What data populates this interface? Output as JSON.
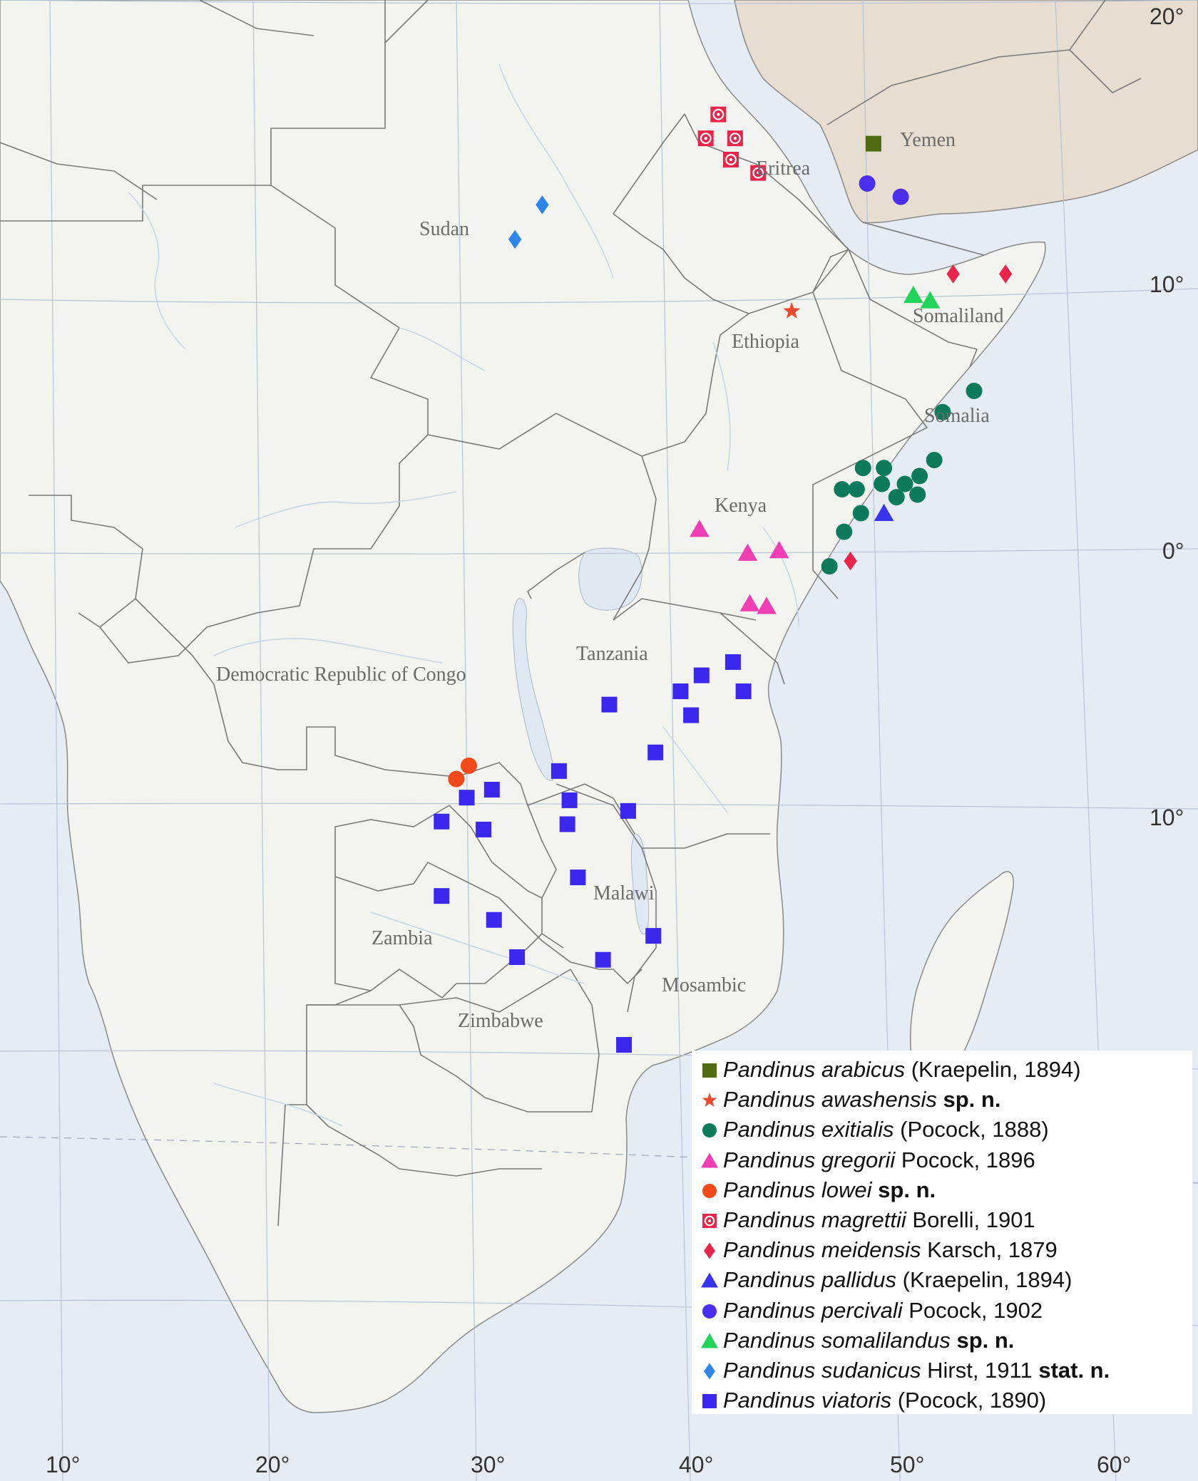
{
  "map": {
    "country_labels": [
      "Yemen",
      "Eritrea",
      "Sudan",
      "Somaliland",
      "Ethiopia",
      "Somalia",
      "Kenya",
      "Tanzania",
      "Democratic Republic of Congo",
      "Malawi",
      "Zambia",
      "Mosambic",
      "Zimbabwe"
    ],
    "longitude_labels": [
      "10°",
      "20°",
      "30°",
      "40°",
      "50°",
      "60°"
    ],
    "latitude_labels": [
      "20°",
      "10°",
      "0°",
      "10°"
    ],
    "colors": {
      "land": "#f3f3ef",
      "sea": "#e6ecf4",
      "arabia": "#e7ddd0",
      "border": "#8a8a8a",
      "river": "#c9d6e6"
    }
  },
  "legend": {
    "entries": [
      {
        "symbol": "square",
        "color": "#4e6b12",
        "genus": "Pandinus",
        "species": "arabicus",
        "author": " (Kraepelin, 1894)",
        "status": ""
      },
      {
        "symbol": "star",
        "color": "#ea4b2e",
        "genus": "Pandinus",
        "species": "awashensis",
        "author": "",
        "status": " sp. n."
      },
      {
        "symbol": "circle",
        "color": "#0d7a5c",
        "genus": "Pandinus",
        "species": "exitialis",
        "author": " (Pocock, 1888)",
        "status": ""
      },
      {
        "symbol": "triangle",
        "color": "#f03fb4",
        "genus": "Pandinus",
        "species": "gregorii",
        "author": " Pocock, 1896",
        "status": ""
      },
      {
        "symbol": "circle",
        "color": "#f24a1a",
        "genus": "Pandinus",
        "species": "lowei",
        "author": "",
        "status": " sp. n."
      },
      {
        "symbol": "ringed-square",
        "color": "#e8264b",
        "genus": "Pandinus",
        "species": "magrettii",
        "author": " Borelli, 1901",
        "status": ""
      },
      {
        "symbol": "diamond",
        "color": "#e8264b",
        "genus": "Pandinus",
        "species": "meidensis",
        "author": " Karsch, 1879",
        "status": ""
      },
      {
        "symbol": "triangle",
        "color": "#3a33ee",
        "genus": "Pandinus",
        "species": "pallidus",
        "author": " (Kraepelin, 1894)",
        "status": ""
      },
      {
        "symbol": "circle",
        "color": "#4a2ff0",
        "genus": "Pandinus",
        "species": "percivali",
        "author": " Pocock, 1902",
        "status": ""
      },
      {
        "symbol": "triangle",
        "color": "#22d35a",
        "genus": "Pandinus",
        "species": "somalilandus",
        "author": "",
        "status": " sp. n."
      },
      {
        "symbol": "diamond",
        "color": "#2f86e6",
        "genus": "Pandinus",
        "species": "sudanicus",
        "author": " Hirst, 1911",
        "status": " stat. n."
      },
      {
        "symbol": "square",
        "color": "#3b27ee",
        "genus": "Pandinus",
        "species": "viatoris",
        "author": " (Pocock, 1890)",
        "status": ""
      }
    ]
  },
  "records": [
    {
      "species": "arabicus",
      "symbol": "square",
      "color": "#4e6b12",
      "lon": 48.5,
      "lat": 15.4
    },
    {
      "species": "percivali",
      "symbol": "circle",
      "color": "#4a2ff0",
      "lon": 48.2,
      "lat": 13.9
    },
    {
      "species": "percivali",
      "symbol": "circle",
      "color": "#4a2ff0",
      "lon": 49.8,
      "lat": 13.4
    },
    {
      "species": "magrettii",
      "symbol": "ringed-square",
      "color": "#e8264b",
      "lon": 41.1,
      "lat": 16.5
    },
    {
      "species": "magrettii",
      "symbol": "ringed-square",
      "color": "#e8264b",
      "lon": 40.5,
      "lat": 15.6
    },
    {
      "species": "magrettii",
      "symbol": "ringed-square",
      "color": "#e8264b",
      "lon": 41.9,
      "lat": 15.6
    },
    {
      "species": "magrettii",
      "symbol": "ringed-square",
      "color": "#e8264b",
      "lon": 41.7,
      "lat": 14.8
    },
    {
      "species": "magrettii",
      "symbol": "ringed-square",
      "color": "#e8264b",
      "lon": 43.0,
      "lat": 14.3
    },
    {
      "species": "sudanicus",
      "symbol": "diamond",
      "color": "#2f86e6",
      "lon": 32.7,
      "lat": 13.1
    },
    {
      "species": "sudanicus",
      "symbol": "diamond",
      "color": "#2f86e6",
      "lon": 31.4,
      "lat": 11.8
    },
    {
      "species": "meidensis",
      "symbol": "diamond",
      "color": "#e8264b",
      "lon": 52.3,
      "lat": 10.5
    },
    {
      "species": "meidensis",
      "symbol": "diamond",
      "color": "#e8264b",
      "lon": 54.8,
      "lat": 10.5
    },
    {
      "species": "meidensis",
      "symbol": "diamond",
      "color": "#e8264b",
      "lon": 47.4,
      "lat": -0.3
    },
    {
      "species": "somalilandus",
      "symbol": "triangle",
      "color": "#22d35a",
      "lon": 50.4,
      "lat": 9.7
    },
    {
      "species": "somalilandus",
      "symbol": "triangle",
      "color": "#22d35a",
      "lon": 51.2,
      "lat": 9.5
    },
    {
      "species": "awashensis",
      "symbol": "star",
      "color": "#ea4b2e",
      "lon": 44.6,
      "lat": 9.1
    },
    {
      "species": "exitialis",
      "symbol": "circle",
      "color": "#0d7a5c",
      "lon": 53.3,
      "lat": 6.1
    },
    {
      "species": "exitialis",
      "symbol": "circle",
      "color": "#0d7a5c",
      "lon": 51.8,
      "lat": 5.3
    },
    {
      "species": "exitialis",
      "symbol": "circle",
      "color": "#0d7a5c",
      "lon": 51.4,
      "lat": 3.5
    },
    {
      "species": "exitialis",
      "symbol": "circle",
      "color": "#0d7a5c",
      "lon": 48.0,
      "lat": 3.2
    },
    {
      "species": "exitialis",
      "symbol": "circle",
      "color": "#0d7a5c",
      "lon": 49.0,
      "lat": 3.2
    },
    {
      "species": "exitialis",
      "symbol": "circle",
      "color": "#0d7a5c",
      "lon": 50.7,
      "lat": 2.9
    },
    {
      "species": "exitialis",
      "symbol": "circle",
      "color": "#0d7a5c",
      "lon": 48.9,
      "lat": 2.6
    },
    {
      "species": "exitialis",
      "symbol": "circle",
      "color": "#0d7a5c",
      "lon": 50.0,
      "lat": 2.6
    },
    {
      "species": "exitialis",
      "symbol": "circle",
      "color": "#0d7a5c",
      "lon": 47.0,
      "lat": 2.4
    },
    {
      "species": "exitialis",
      "symbol": "circle",
      "color": "#0d7a5c",
      "lon": 47.7,
      "lat": 2.4
    },
    {
      "species": "exitialis",
      "symbol": "circle",
      "color": "#0d7a5c",
      "lon": 49.6,
      "lat": 2.1
    },
    {
      "species": "exitialis",
      "symbol": "circle",
      "color": "#0d7a5c",
      "lon": 50.6,
      "lat": 2.2
    },
    {
      "species": "exitialis",
      "symbol": "circle",
      "color": "#0d7a5c",
      "lon": 47.9,
      "lat": 1.5
    },
    {
      "species": "exitialis",
      "symbol": "circle",
      "color": "#0d7a5c",
      "lon": 47.1,
      "lat": 0.8
    },
    {
      "species": "exitialis",
      "symbol": "circle",
      "color": "#0d7a5c",
      "lon": 46.4,
      "lat": -0.5
    },
    {
      "species": "pallidus",
      "symbol": "triangle",
      "color": "#3a33ee",
      "lon": 49.0,
      "lat": 1.5
    },
    {
      "species": "gregorii",
      "symbol": "triangle",
      "color": "#f03fb4",
      "lon": 40.2,
      "lat": 0.9
    },
    {
      "species": "gregorii",
      "symbol": "triangle",
      "color": "#f03fb4",
      "lon": 42.5,
      "lat": 0.0
    },
    {
      "species": "gregorii",
      "symbol": "triangle",
      "color": "#f03fb4",
      "lon": 44.0,
      "lat": 0.1
    },
    {
      "species": "gregorii",
      "symbol": "triangle",
      "color": "#f03fb4",
      "lon": 42.6,
      "lat": -1.9
    },
    {
      "species": "gregorii",
      "symbol": "triangle",
      "color": "#f03fb4",
      "lon": 43.4,
      "lat": -2.0
    },
    {
      "species": "viatoris",
      "symbol": "square",
      "color": "#3b27ee",
      "lon": 41.8,
      "lat": -4.1
    },
    {
      "species": "viatoris",
      "symbol": "square",
      "color": "#3b27ee",
      "lon": 40.3,
      "lat": -4.6
    },
    {
      "species": "viatoris",
      "symbol": "square",
      "color": "#3b27ee",
      "lon": 39.3,
      "lat": -5.2
    },
    {
      "species": "viatoris",
      "symbol": "square",
      "color": "#3b27ee",
      "lon": 42.3,
      "lat": -5.2
    },
    {
      "species": "viatoris",
      "symbol": "square",
      "color": "#3b27ee",
      "lon": 35.9,
      "lat": -5.7
    },
    {
      "species": "viatoris",
      "symbol": "square",
      "color": "#3b27ee",
      "lon": 39.8,
      "lat": -6.1
    },
    {
      "species": "viatoris",
      "symbol": "square",
      "color": "#3b27ee",
      "lon": 38.1,
      "lat": -7.5
    },
    {
      "species": "viatoris",
      "symbol": "square",
      "color": "#3b27ee",
      "lon": 33.5,
      "lat": -8.2
    },
    {
      "species": "viatoris",
      "symbol": "square",
      "color": "#3b27ee",
      "lon": 30.3,
      "lat": -8.9
    },
    {
      "species": "viatoris",
      "symbol": "square",
      "color": "#3b27ee",
      "lon": 29.1,
      "lat": -9.2
    },
    {
      "species": "viatoris",
      "symbol": "square",
      "color": "#3b27ee",
      "lon": 34.0,
      "lat": -9.3
    },
    {
      "species": "viatoris",
      "symbol": "square",
      "color": "#3b27ee",
      "lon": 36.8,
      "lat": -9.7
    },
    {
      "species": "viatoris",
      "symbol": "square",
      "color": "#3b27ee",
      "lon": 27.9,
      "lat": -10.1
    },
    {
      "species": "viatoris",
      "symbol": "square",
      "color": "#3b27ee",
      "lon": 33.9,
      "lat": -10.2
    },
    {
      "species": "viatoris",
      "symbol": "square",
      "color": "#3b27ee",
      "lon": 29.9,
      "lat": -10.4
    },
    {
      "species": "viatoris",
      "symbol": "square",
      "color": "#3b27ee",
      "lon": 34.4,
      "lat": -12.2
    },
    {
      "species": "viatoris",
      "symbol": "square",
      "color": "#3b27ee",
      "lon": 27.9,
      "lat": -12.9
    },
    {
      "species": "viatoris",
      "symbol": "square",
      "color": "#3b27ee",
      "lon": 30.4,
      "lat": -13.8
    },
    {
      "species": "viatoris",
      "symbol": "square",
      "color": "#3b27ee",
      "lon": 38.0,
      "lat": -14.4
    },
    {
      "species": "viatoris",
      "symbol": "square",
      "color": "#3b27ee",
      "lon": 31.5,
      "lat": -15.2
    },
    {
      "species": "viatoris",
      "symbol": "square",
      "color": "#3b27ee",
      "lon": 35.6,
      "lat": -15.3
    },
    {
      "species": "viatoris",
      "symbol": "square",
      "color": "#3b27ee",
      "lon": 36.6,
      "lat": -18.5
    },
    {
      "species": "lowei",
      "symbol": "circle",
      "color": "#f24a1a",
      "lon": 29.2,
      "lat": -8.0
    },
    {
      "species": "lowei",
      "symbol": "circle",
      "color": "#f24a1a",
      "lon": 28.6,
      "lat": -8.5
    }
  ]
}
